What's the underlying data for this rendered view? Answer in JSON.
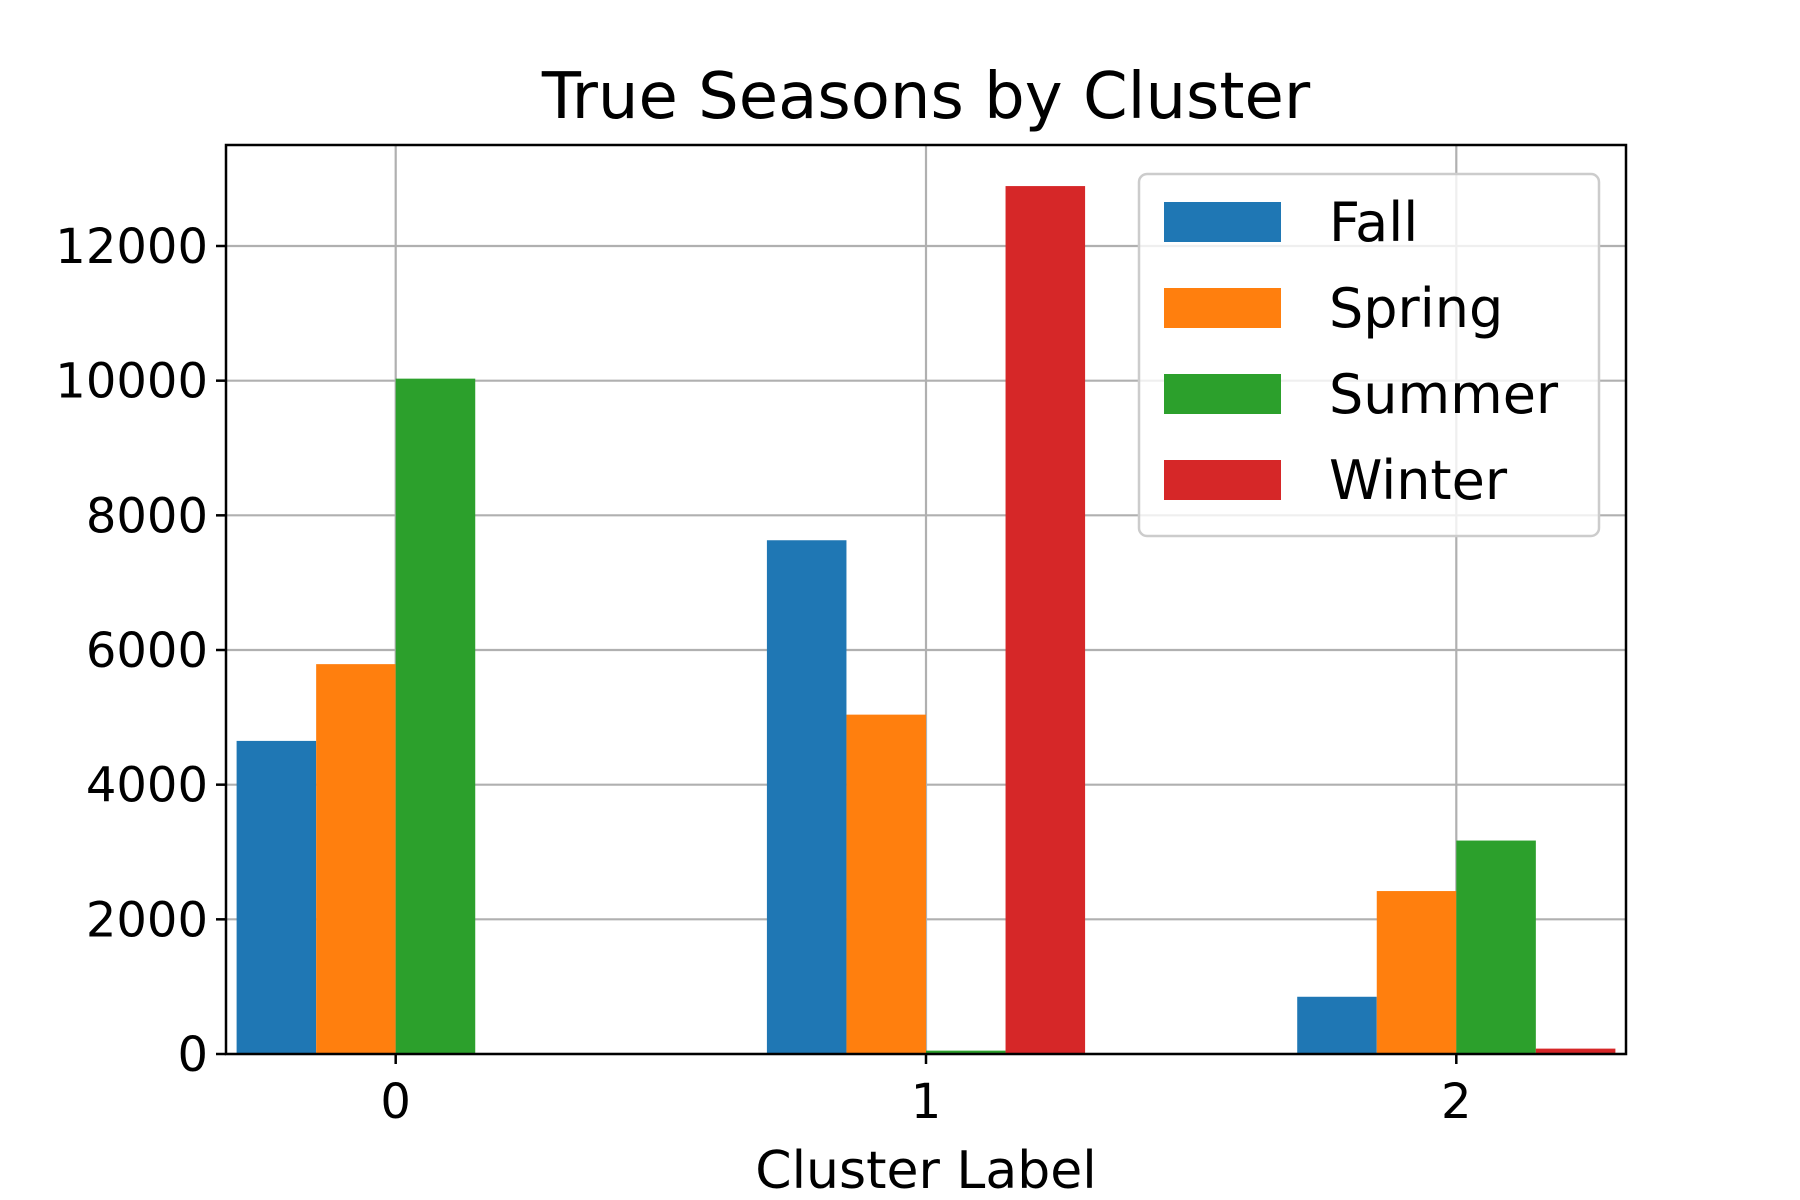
{
  "chart_data": {
    "type": "bar",
    "title": "True Seasons by Cluster",
    "xlabel": "Cluster Label",
    "ylabel": "",
    "categories": [
      "0",
      "1",
      "2"
    ],
    "series": [
      {
        "name": "Fall",
        "color": "#1f77b4",
        "values": [
          4650,
          7630,
          850
        ]
      },
      {
        "name": "Spring",
        "color": "#ff7f0e",
        "values": [
          5790,
          5040,
          2420
        ]
      },
      {
        "name": "Summer",
        "color": "#2ca02c",
        "values": [
          10030,
          50,
          3170
        ]
      },
      {
        "name": "Winter",
        "color": "#d62728",
        "values": [
          0,
          12890,
          80
        ]
      }
    ],
    "ylim": [
      0,
      13500
    ],
    "yticks": [
      0,
      2000,
      4000,
      6000,
      8000,
      10000,
      12000
    ],
    "ytick_labels": [
      "0",
      "2000",
      "4000",
      "6000",
      "8000",
      "10000",
      "12000"
    ],
    "grid": true,
    "legend_position": "top-right"
  }
}
